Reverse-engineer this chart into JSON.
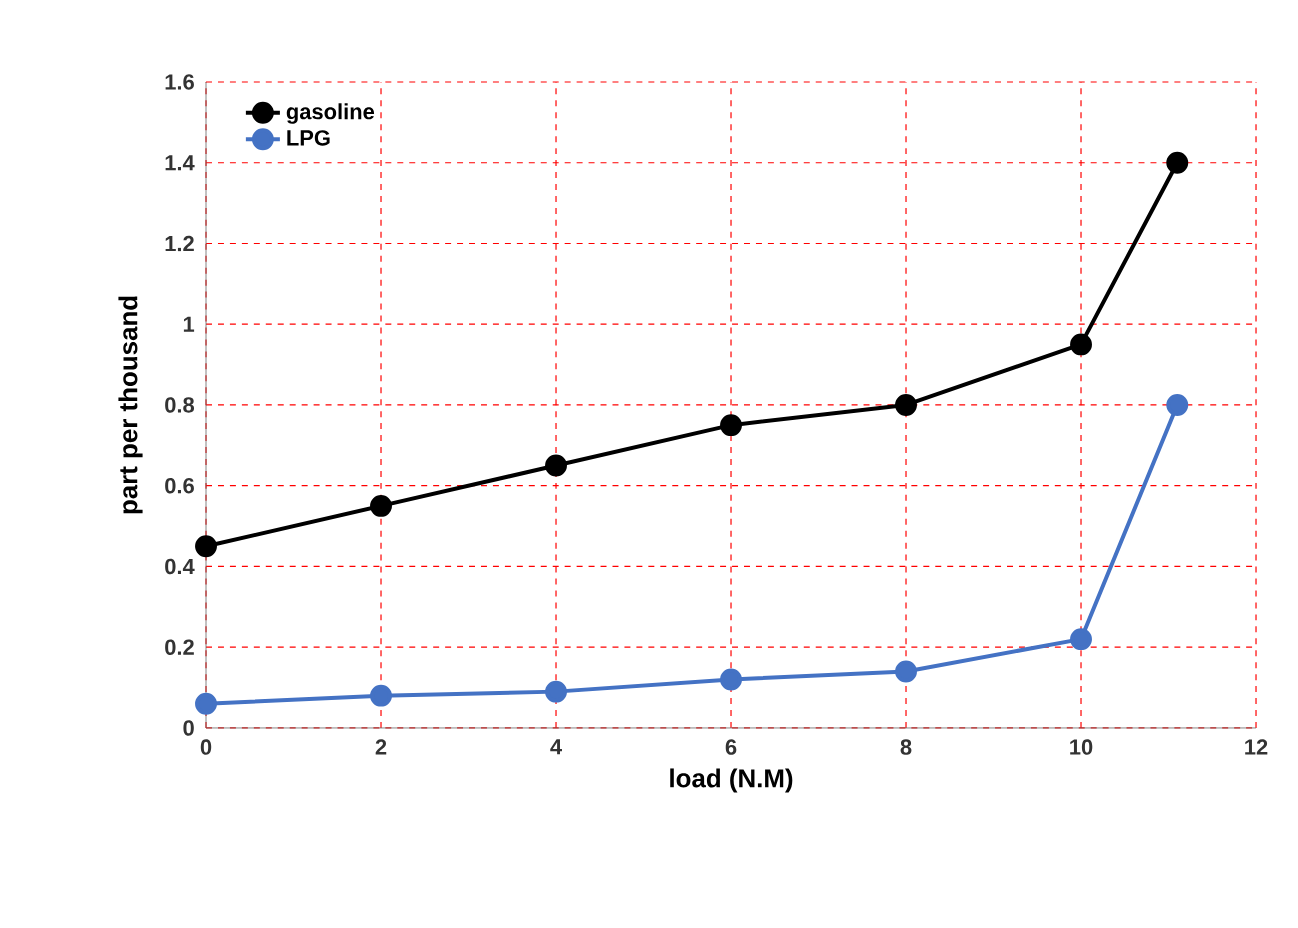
{
  "chart_data": {
    "type": "line",
    "xlabel": "load (N.M)",
    "ylabel": "part per thousand",
    "x": [
      0,
      2,
      4,
      6,
      8,
      10,
      11.1
    ],
    "series": [
      {
        "name": "gasoline",
        "color": "#000000",
        "values": [
          0.45,
          0.55,
          0.65,
          0.75,
          0.8,
          0.95,
          1.4
        ]
      },
      {
        "name": "LPG",
        "color": "#4472c4",
        "values": [
          0.06,
          0.08,
          0.09,
          0.12,
          0.14,
          0.22,
          0.8
        ]
      }
    ],
    "xlim": [
      0,
      12
    ],
    "ylim": [
      0,
      1.6
    ],
    "xticks": [
      0,
      2,
      4,
      6,
      8,
      10,
      12
    ],
    "yticks": [
      0,
      0.2,
      0.4,
      0.6,
      0.8,
      1,
      1.2,
      1.4,
      1.6
    ],
    "grid": true,
    "legend": "top left",
    "marker": "circle",
    "line_style": "solid"
  }
}
